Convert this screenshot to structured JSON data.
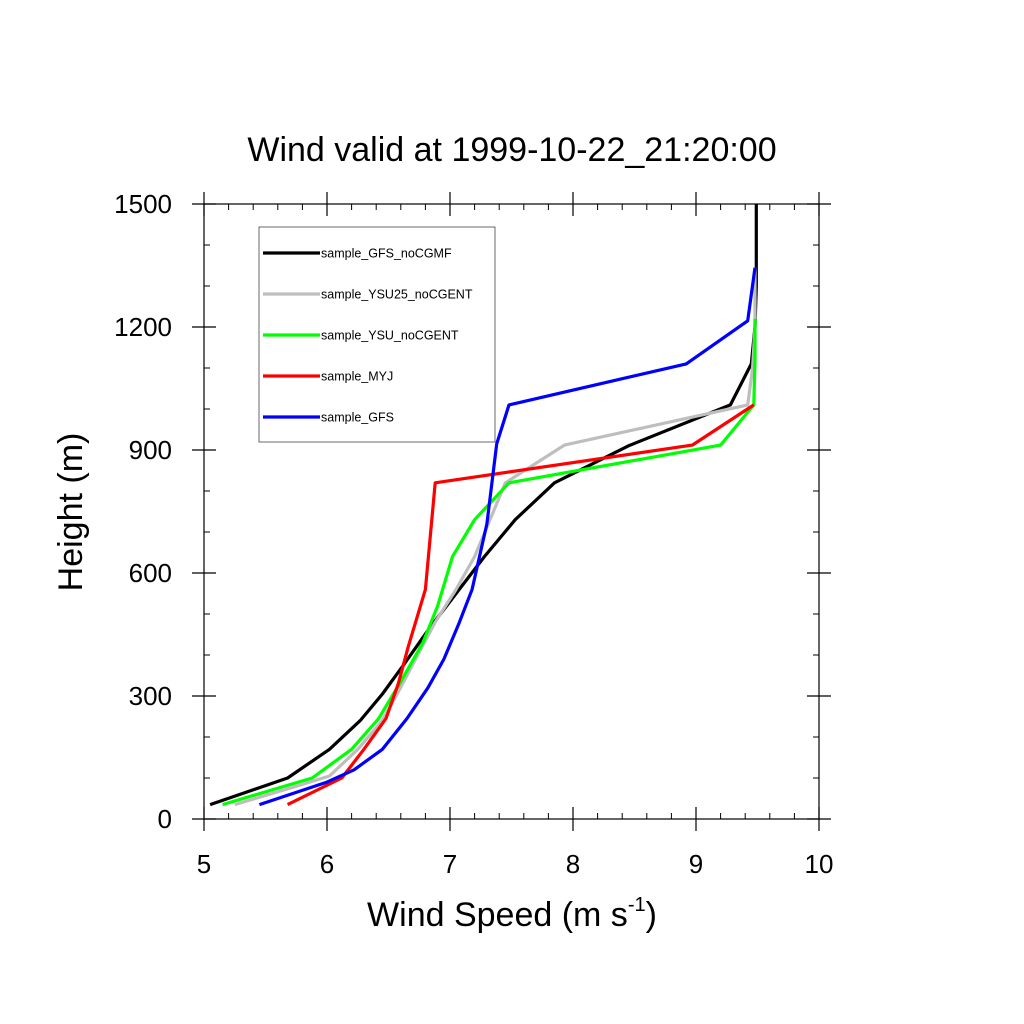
{
  "chart_data": {
    "type": "line",
    "title": "Wind valid at 1999-10-22_21:20:00",
    "xlabel": "Wind Speed (m s",
    "xlabel_sup": "-1",
    "xlabel_close": ")",
    "ylabel": "Height (m)",
    "xlim": [
      5,
      10
    ],
    "ylim": [
      0,
      1500
    ],
    "xticks": [
      5,
      6,
      7,
      8,
      9,
      10
    ],
    "yticks": [
      0,
      300,
      600,
      900,
      1200,
      1500
    ],
    "legend_position": "top-left",
    "series": [
      {
        "name": "sample_GFS_noCGMF",
        "color": "#000000",
        "points": [
          [
            5.05,
            35
          ],
          [
            5.68,
            100
          ],
          [
            6.02,
            170
          ],
          [
            6.27,
            240
          ],
          [
            6.45,
            305
          ],
          [
            6.62,
            375
          ],
          [
            6.82,
            460
          ],
          [
            7.05,
            550
          ],
          [
            7.28,
            640
          ],
          [
            7.53,
            730
          ],
          [
            7.85,
            820
          ],
          [
            8.45,
            910
          ],
          [
            9.28,
            1010
          ],
          [
            9.45,
            1110
          ],
          [
            9.48,
            1200
          ],
          [
            9.49,
            1300
          ],
          [
            9.49,
            1500
          ]
        ]
      },
      {
        "name": "sample_YSU25_noCGENT",
        "color": "#bebebe",
        "points": [
          [
            5.25,
            35
          ],
          [
            5.75,
            80
          ],
          [
            6.02,
            105
          ],
          [
            6.25,
            170
          ],
          [
            6.45,
            240
          ],
          [
            6.58,
            310
          ],
          [
            6.72,
            390
          ],
          [
            6.88,
            480
          ],
          [
            7.05,
            560
          ],
          [
            7.2,
            640
          ],
          [
            7.45,
            820
          ],
          [
            7.93,
            912
          ],
          [
            9.42,
            1010
          ],
          [
            9.46,
            1100
          ],
          [
            9.48,
            1200
          ],
          [
            9.48,
            1345
          ]
        ]
      },
      {
        "name": "sample_YSU_noCGENT",
        "color": "#00ff00",
        "points": [
          [
            5.15,
            35
          ],
          [
            5.88,
            100
          ],
          [
            6.2,
            170
          ],
          [
            6.42,
            245
          ],
          [
            6.6,
            335
          ],
          [
            6.78,
            430
          ],
          [
            6.9,
            520
          ],
          [
            7.02,
            640
          ],
          [
            7.2,
            730
          ],
          [
            7.48,
            820
          ],
          [
            9.2,
            912
          ],
          [
            9.47,
            1010
          ],
          [
            9.48,
            1120
          ],
          [
            9.48,
            1220
          ]
        ]
      },
      {
        "name": "sample_MYJ",
        "color": "#ff0000",
        "points": [
          [
            5.68,
            35
          ],
          [
            6.12,
            100
          ],
          [
            6.3,
            170
          ],
          [
            6.48,
            245
          ],
          [
            6.58,
            330
          ],
          [
            6.66,
            420
          ],
          [
            6.72,
            480
          ],
          [
            6.8,
            560
          ],
          [
            6.88,
            820
          ],
          [
            8.97,
            912
          ],
          [
            9.47,
            1010
          ]
        ]
      },
      {
        "name": "sample_GFS",
        "color": "#0000ff",
        "points": [
          [
            5.45,
            35
          ],
          [
            6.0,
            90
          ],
          [
            6.22,
            120
          ],
          [
            6.45,
            170
          ],
          [
            6.65,
            245
          ],
          [
            6.82,
            320
          ],
          [
            6.95,
            390
          ],
          [
            7.07,
            475
          ],
          [
            7.18,
            560
          ],
          [
            7.3,
            720
          ],
          [
            7.38,
            915
          ],
          [
            7.48,
            1010
          ],
          [
            8.92,
            1110
          ],
          [
            9.42,
            1215
          ],
          [
            9.48,
            1345
          ]
        ]
      }
    ]
  }
}
